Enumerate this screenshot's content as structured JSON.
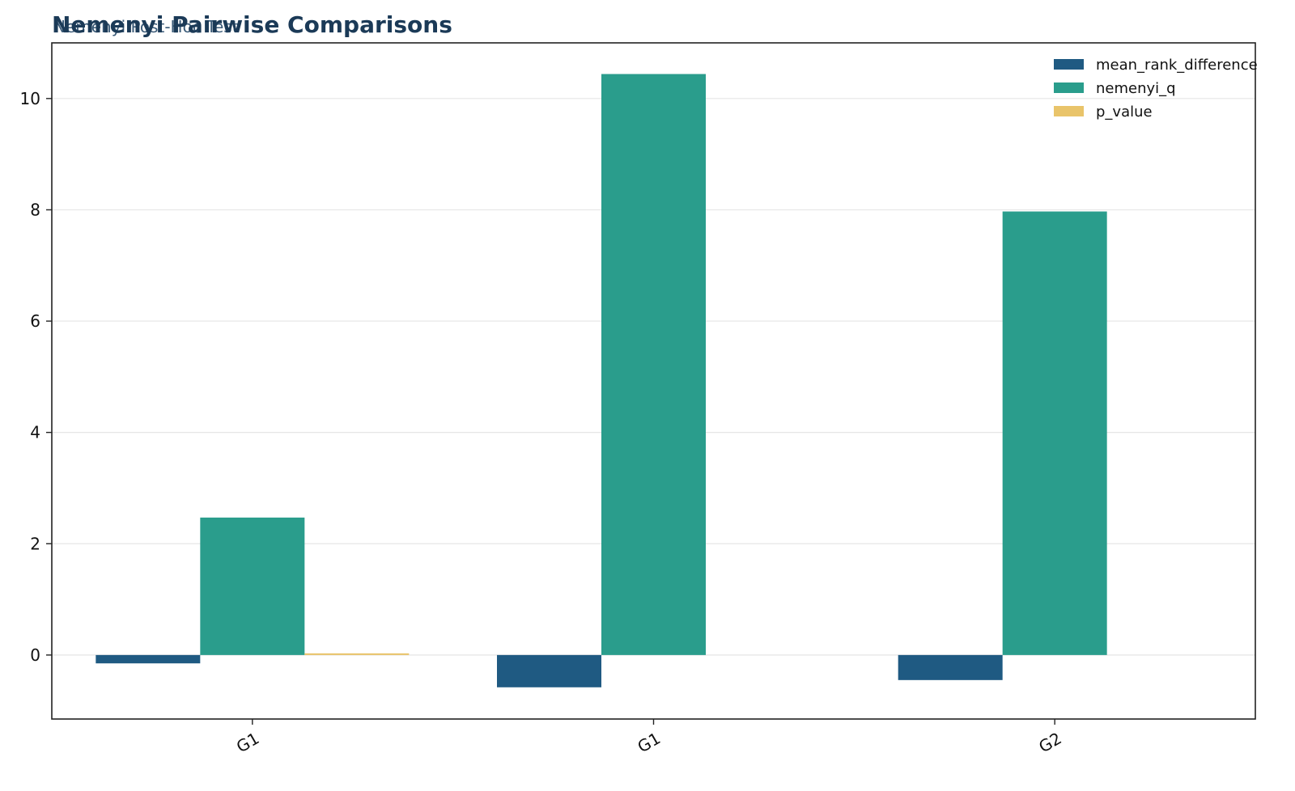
{
  "chart_data": {
    "type": "bar",
    "title": "Nemenyi Pairwise Comparisons",
    "subtitle": "Nemenyi Post-Hoc Test",
    "xlabel": "",
    "ylabel": "",
    "categories": [
      "G1",
      "G1",
      "G2"
    ],
    "series": [
      {
        "name": "mean_rank_difference",
        "color": "#1f5a82",
        "values": [
          -0.15,
          -0.58,
          -0.45
        ]
      },
      {
        "name": "nemenyi_q",
        "color": "#2a9d8c",
        "values": [
          2.47,
          10.44,
          7.97
        ]
      },
      {
        "name": "p_value",
        "color": "#e9c46a",
        "values": [
          0.03,
          0.0,
          0.0
        ]
      }
    ],
    "ylim": [
      -1.15,
      11.0
    ],
    "yticks": [
      0,
      2,
      4,
      6,
      8,
      10
    ],
    "grid": true,
    "legend": "top-right"
  }
}
